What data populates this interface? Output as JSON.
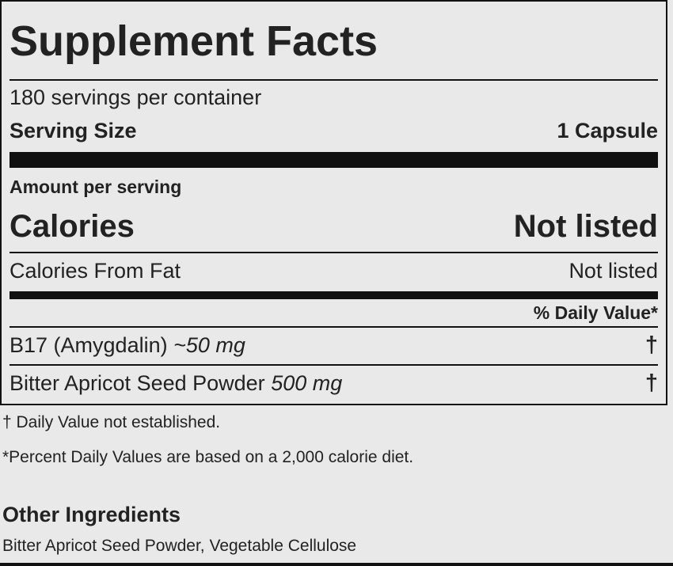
{
  "panel": {
    "title": "Supplement Facts",
    "servings_per_container": "180 servings per container",
    "serving_size_label": "Serving Size",
    "serving_size_value": "1 Capsule",
    "amount_per_serving": "Amount per serving",
    "calories_label": "Calories",
    "calories_value": "Not listed",
    "calories_from_fat_label": "Calories From Fat",
    "calories_from_fat_value": "Not listed",
    "daily_value_header": "% Daily Value*",
    "nutrients": [
      {
        "name": "B17 (Amygdalin)",
        "amount": "~50 mg",
        "daily_value": "†"
      },
      {
        "name": "Bitter Apricot Seed Powder",
        "amount": "500 mg",
        "daily_value": "†"
      }
    ]
  },
  "footnotes": {
    "dagger_note": "† Daily Value not established.",
    "percent_note": "*Percent Daily Values are based on a 2,000 calorie diet."
  },
  "other_ingredients": {
    "title": "Other Ingredients",
    "list": "Bitter Apricot Seed Powder, Vegetable Cellulose"
  }
}
